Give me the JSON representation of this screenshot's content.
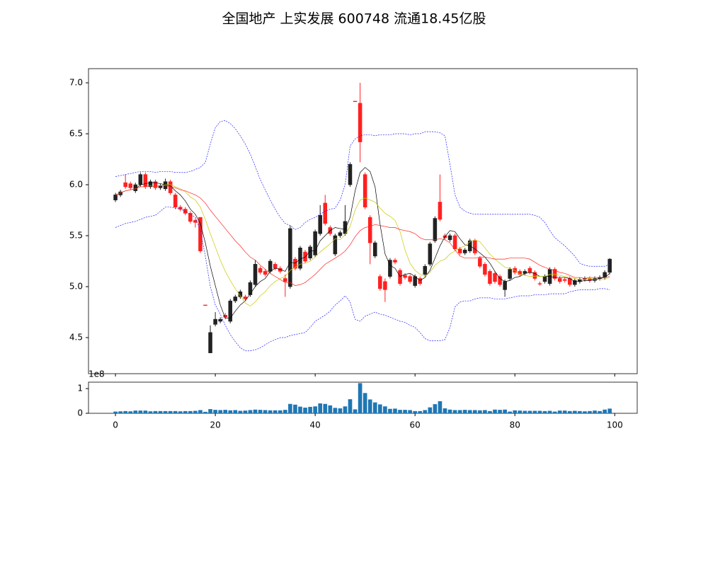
{
  "chart_data": {
    "type": "candlestick",
    "title": "全国地产 上实发展 600748 流通18.45亿股",
    "x": [
      0,
      1,
      2,
      3,
      4,
      5,
      6,
      7,
      8,
      9,
      10,
      11,
      12,
      13,
      14,
      15,
      16,
      17,
      18,
      19,
      20,
      21,
      22,
      23,
      24,
      25,
      26,
      27,
      28,
      29,
      30,
      31,
      32,
      33,
      34,
      35,
      36,
      37,
      38,
      39,
      40,
      41,
      42,
      43,
      44,
      45,
      46,
      47,
      48,
      49,
      50,
      51,
      52,
      53,
      54,
      55,
      56,
      57,
      58,
      59,
      60,
      61,
      62,
      63,
      64,
      65,
      66,
      67,
      68,
      69,
      70,
      71,
      72,
      73,
      74,
      75,
      76,
      77,
      78,
      79,
      80,
      81,
      82,
      83,
      84,
      85,
      86,
      87,
      88,
      89,
      90,
      91,
      92,
      93,
      94,
      95,
      96,
      97,
      98,
      99
    ],
    "open": [
      5.85,
      5.9,
      6.02,
      6.01,
      5.94,
      6.0,
      6.1,
      5.98,
      6.03,
      5.97,
      5.96,
      6.03,
      5.9,
      5.78,
      5.76,
      5.72,
      5.65,
      5.68,
      4.82,
      4.35,
      4.63,
      4.66,
      4.72,
      4.66,
      4.86,
      4.9,
      4.9,
      4.92,
      5.02,
      5.18,
      5.15,
      5.15,
      5.22,
      5.18,
      5.08,
      5.0,
      5.27,
      5.18,
      5.34,
      5.28,
      5.31,
      5.52,
      5.82,
      5.58,
      5.32,
      5.5,
      5.52,
      6.0,
      6.82,
      6.8,
      6.1,
      5.68,
      5.3,
      5.1,
      5.05,
      5.1,
      5.26,
      5.16,
      5.11,
      5.1,
      5.01,
      5.08,
      5.12,
      5.22,
      5.45,
      5.83,
      5.5,
      5.46,
      5.5,
      5.37,
      5.33,
      5.35,
      5.45,
      5.28,
      5.22,
      5.15,
      5.13,
      5.1,
      4.97,
      5.08,
      5.18,
      5.15,
      5.13,
      5.18,
      5.14,
      5.03,
      5.05,
      5.03,
      5.17,
      5.08,
      5.07,
      5.08,
      5.02,
      5.05,
      5.07,
      5.08,
      5.06,
      5.08,
      5.09,
      5.14
    ],
    "high": [
      5.92,
      5.95,
      6.1,
      6.03,
      6.02,
      6.12,
      6.12,
      6.05,
      6.05,
      6.01,
      6.06,
      6.05,
      5.92,
      5.8,
      5.78,
      5.74,
      5.67,
      5.68,
      4.82,
      4.62,
      4.75,
      4.7,
      4.74,
      4.88,
      4.92,
      4.97,
      4.92,
      5.06,
      5.26,
      5.2,
      5.17,
      5.27,
      5.24,
      5.2,
      5.12,
      5.6,
      5.29,
      5.4,
      5.36,
      5.41,
      5.56,
      5.8,
      5.9,
      5.6,
      5.52,
      5.55,
      5.8,
      6.22,
      6.82,
      7.0,
      6.12,
      5.7,
      5.45,
      5.12,
      5.08,
      5.28,
      5.28,
      5.18,
      5.13,
      5.12,
      5.12,
      5.1,
      5.22,
      5.44,
      5.69,
      6.1,
      5.52,
      5.52,
      5.52,
      5.39,
      5.38,
      5.47,
      5.47,
      5.3,
      5.24,
      5.17,
      5.15,
      5.12,
      5.07,
      5.19,
      5.2,
      5.17,
      5.17,
      5.2,
      5.16,
      5.05,
      5.12,
      5.19,
      5.19,
      5.1,
      5.09,
      5.1,
      5.08,
      5.09,
      5.1,
      5.1,
      5.1,
      5.11,
      5.16,
      5.28
    ],
    "low": [
      5.83,
      5.88,
      5.96,
      5.95,
      5.92,
      5.98,
      5.96,
      5.96,
      5.95,
      5.95,
      5.94,
      5.9,
      5.76,
      5.74,
      5.7,
      5.62,
      5.58,
      5.33,
      4.82,
      4.35,
      4.61,
      4.64,
      4.68,
      4.64,
      4.84,
      4.88,
      4.86,
      4.9,
      5.0,
      5.12,
      5.1,
      5.13,
      5.16,
      5.13,
      4.9,
      4.98,
      5.16,
      5.16,
      5.23,
      5.26,
      5.29,
      5.5,
      5.6,
      5.5,
      5.3,
      5.48,
      5.5,
      5.98,
      6.82,
      6.22,
      5.76,
      5.22,
      5.28,
      4.96,
      4.85,
      5.08,
      5.22,
      5.01,
      5.07,
      5.03,
      4.99,
      5.01,
      5.1,
      5.2,
      5.43,
      5.64,
      5.46,
      5.44,
      5.35,
      5.31,
      5.31,
      5.33,
      5.31,
      5.18,
      5.1,
      5.01,
      5.03,
      5.0,
      4.9,
      5.06,
      5.12,
      5.1,
      5.11,
      5.12,
      5.06,
      5.01,
      5.03,
      5.01,
      5.06,
      5.03,
      5.04,
      5.0,
      5.0,
      5.03,
      5.05,
      5.04,
      5.04,
      5.06,
      5.07,
      5.12
    ],
    "close": [
      5.9,
      5.93,
      5.98,
      5.97,
      6.0,
      6.1,
      5.98,
      6.03,
      5.97,
      5.99,
      6.03,
      5.92,
      5.78,
      5.76,
      5.72,
      5.64,
      5.63,
      5.35,
      4.82,
      4.55,
      4.68,
      4.68,
      4.7,
      4.86,
      4.9,
      4.95,
      4.88,
      5.04,
      5.22,
      5.14,
      5.12,
      5.25,
      5.18,
      5.15,
      5.05,
      5.57,
      5.18,
      5.38,
      5.25,
      5.39,
      5.54,
      5.7,
      5.62,
      5.52,
      5.5,
      5.53,
      5.64,
      6.2,
      6.82,
      6.42,
      5.78,
      5.43,
      5.43,
      4.98,
      4.97,
      5.26,
      5.24,
      5.03,
      5.09,
      5.05,
      5.1,
      5.03,
      5.2,
      5.42,
      5.67,
      5.66,
      5.48,
      5.5,
      5.37,
      5.33,
      5.36,
      5.45,
      5.33,
      5.2,
      5.12,
      5.03,
      5.05,
      5.02,
      5.05,
      5.17,
      5.14,
      5.12,
      5.15,
      5.14,
      5.08,
      5.03,
      5.1,
      5.17,
      5.08,
      5.05,
      5.06,
      5.02,
      5.06,
      5.07,
      5.08,
      5.06,
      5.08,
      5.09,
      5.14,
      5.27
    ],
    "up_color": "#222222",
    "down_color": "#ff2020",
    "lines": [
      {
        "color": "#000000",
        "dashed": false,
        "values": [
          5.9,
          5.92,
          5.94,
          5.95,
          5.96,
          6.0,
          6.01,
          6.02,
          6.02,
          6.01,
          6.0,
          5.99,
          5.94,
          5.9,
          5.84,
          5.76,
          5.71,
          5.62,
          5.43,
          5.2,
          5.01,
          4.82,
          4.69,
          4.69,
          4.76,
          4.82,
          4.86,
          4.93,
          5.0,
          5.05,
          5.08,
          5.15,
          5.18,
          5.17,
          5.15,
          5.24,
          5.23,
          5.27,
          5.29,
          5.35,
          5.35,
          5.45,
          5.5,
          5.55,
          5.58,
          5.57,
          5.56,
          5.68,
          5.94,
          6.12,
          6.17,
          6.13,
          5.98,
          5.61,
          5.32,
          5.21,
          5.18,
          5.1,
          5.12,
          5.13,
          5.1,
          5.06,
          5.09,
          5.16,
          5.28,
          5.4,
          5.49,
          5.55,
          5.54,
          5.47,
          5.41,
          5.4,
          5.37,
          5.33,
          5.29,
          5.23,
          5.15,
          5.08,
          5.05,
          5.06,
          5.09,
          5.1,
          5.13,
          5.14,
          5.13,
          5.1,
          5.1,
          5.1,
          5.09,
          5.09,
          5.09,
          5.08,
          5.05,
          5.05,
          5.06,
          5.06,
          5.07,
          5.08,
          5.09,
          5.13
        ]
      },
      {
        "color": "#c8c800",
        "dashed": false,
        "values": [
          5.9,
          5.92,
          5.94,
          5.95,
          5.96,
          5.98,
          5.98,
          5.99,
          5.98,
          5.99,
          6.0,
          6.0,
          5.98,
          5.96,
          5.93,
          5.88,
          5.85,
          5.78,
          5.66,
          5.52,
          5.39,
          5.26,
          5.15,
          5.06,
          4.98,
          4.91,
          4.84,
          4.81,
          4.85,
          4.91,
          4.95,
          5.01,
          5.05,
          5.08,
          5.1,
          5.16,
          5.19,
          5.22,
          5.23,
          5.25,
          5.29,
          5.34,
          5.38,
          5.42,
          5.47,
          5.46,
          5.51,
          5.59,
          5.75,
          5.85,
          5.87,
          5.85,
          5.83,
          5.77,
          5.72,
          5.69,
          5.65,
          5.54,
          5.36,
          5.23,
          5.16,
          5.12,
          5.1,
          5.14,
          5.21,
          5.25,
          5.27,
          5.32,
          5.35,
          5.38,
          5.4,
          5.44,
          5.46,
          5.44,
          5.38,
          5.32,
          5.27,
          5.23,
          5.19,
          5.18,
          5.16,
          5.12,
          5.11,
          5.1,
          5.1,
          5.1,
          5.1,
          5.12,
          5.12,
          5.11,
          5.1,
          5.09,
          5.08,
          5.07,
          5.07,
          5.08,
          5.07,
          5.07,
          5.07,
          5.09
        ]
      },
      {
        "color": "#ff2020",
        "dashed": false,
        "values": [
          5.9,
          5.92,
          5.94,
          5.95,
          5.96,
          5.98,
          5.98,
          5.99,
          5.98,
          5.99,
          5.99,
          5.98,
          5.97,
          5.95,
          5.94,
          5.92,
          5.9,
          5.87,
          5.82,
          5.75,
          5.69,
          5.63,
          5.57,
          5.51,
          5.45,
          5.4,
          5.34,
          5.29,
          5.26,
          5.21,
          5.17,
          5.13,
          5.1,
          5.07,
          5.04,
          5.04,
          5.01,
          5.02,
          5.04,
          5.08,
          5.12,
          5.17,
          5.22,
          5.25,
          5.28,
          5.31,
          5.35,
          5.41,
          5.49,
          5.55,
          5.58,
          5.59,
          5.61,
          5.6,
          5.59,
          5.58,
          5.58,
          5.56,
          5.55,
          5.54,
          5.52,
          5.48,
          5.46,
          5.46,
          5.46,
          5.47,
          5.46,
          5.43,
          5.36,
          5.3,
          5.28,
          5.28,
          5.28,
          5.29,
          5.29,
          5.28,
          5.27,
          5.27,
          5.27,
          5.28,
          5.28,
          5.28,
          5.28,
          5.27,
          5.24,
          5.21,
          5.19,
          5.17,
          5.16,
          5.14,
          5.13,
          5.11,
          5.09,
          5.09,
          5.08,
          5.09,
          5.09,
          5.09,
          5.09,
          5.1
        ]
      },
      {
        "color": "#2020ff",
        "dashed": true,
        "values": [
          6.08,
          6.09,
          6.1,
          6.11,
          6.12,
          6.13,
          6.13,
          6.13,
          6.12,
          6.13,
          6.13,
          6.13,
          6.12,
          6.12,
          6.12,
          6.13,
          6.15,
          6.17,
          6.22,
          6.4,
          6.56,
          6.62,
          6.63,
          6.6,
          6.55,
          6.48,
          6.4,
          6.3,
          6.18,
          6.05,
          5.95,
          5.85,
          5.76,
          5.68,
          5.62,
          5.6,
          5.56,
          5.58,
          5.63,
          5.66,
          5.68,
          5.71,
          5.74,
          5.76,
          5.77,
          5.85,
          6.0,
          6.38,
          6.45,
          6.48,
          6.49,
          6.49,
          6.48,
          6.49,
          6.49,
          6.49,
          6.5,
          6.5,
          6.5,
          6.49,
          6.5,
          6.5,
          6.52,
          6.52,
          6.52,
          6.51,
          6.48,
          6.2,
          5.9,
          5.78,
          5.74,
          5.72,
          5.71,
          5.71,
          5.71,
          5.71,
          5.71,
          5.71,
          5.71,
          5.71,
          5.71,
          5.71,
          5.71,
          5.71,
          5.7,
          5.68,
          5.63,
          5.55,
          5.48,
          5.44,
          5.4,
          5.35,
          5.3,
          5.23,
          5.21,
          5.2,
          5.2,
          5.2,
          5.2,
          5.22
        ]
      },
      {
        "color": "#2020ff",
        "dashed": true,
        "values": [
          5.58,
          5.6,
          5.62,
          5.63,
          5.64,
          5.66,
          5.68,
          5.69,
          5.7,
          5.74,
          5.78,
          5.78,
          5.77,
          5.76,
          5.74,
          5.71,
          5.68,
          5.55,
          5.3,
          5.0,
          4.82,
          4.73,
          4.62,
          4.53,
          4.46,
          4.4,
          4.37,
          4.37,
          4.38,
          4.4,
          4.43,
          4.46,
          4.48,
          4.5,
          4.5,
          4.52,
          4.53,
          4.54,
          4.55,
          4.6,
          4.66,
          4.69,
          4.72,
          4.76,
          4.82,
          4.86,
          4.91,
          4.85,
          4.68,
          4.66,
          4.71,
          4.73,
          4.75,
          4.73,
          4.72,
          4.7,
          4.68,
          4.66,
          4.65,
          4.62,
          4.6,
          4.55,
          4.49,
          4.47,
          4.47,
          4.47,
          4.48,
          4.6,
          4.8,
          4.85,
          4.86,
          4.86,
          4.88,
          4.89,
          4.89,
          4.89,
          4.88,
          4.88,
          4.88,
          4.89,
          4.9,
          4.91,
          4.91,
          4.91,
          4.92,
          4.92,
          4.92,
          4.93,
          4.93,
          4.93,
          4.93,
          4.95,
          4.96,
          4.97,
          4.97,
          4.97,
          4.97,
          4.98,
          4.98,
          4.97
        ]
      }
    ],
    "xlim": [
      -5.4,
      104.5
    ],
    "xticks": [
      0,
      20,
      40,
      60,
      80,
      100
    ],
    "ylim": [
      4.146,
      7.139
    ],
    "yticks": [
      4.5,
      {
        "value": 5,
        "label": "5.0"
      },
      5.5,
      {
        "value": 6,
        "label": "6.0"
      },
      6.5,
      {
        "value": 7,
        "label": "7.0"
      }
    ],
    "volume": {
      "type": "bar",
      "color": "#1f77b4",
      "offset_label": "1e8",
      "values": [
        7000000,
        8000000,
        9000000,
        8000000,
        11000000,
        11000000,
        11000000,
        8000000,
        9000000,
        9000000,
        9000000,
        9000000,
        9000000,
        8000000,
        9000000,
        9000000,
        10000000,
        13000000,
        6000000,
        17000000,
        14000000,
        13000000,
        14000000,
        12000000,
        13000000,
        10000000,
        11000000,
        13000000,
        15000000,
        14000000,
        13000000,
        12000000,
        12000000,
        12000000,
        14000000,
        38000000,
        35000000,
        27000000,
        23000000,
        26000000,
        28000000,
        40000000,
        38000000,
        32000000,
        22000000,
        20000000,
        28000000,
        57000000,
        16000000,
        122000000,
        82000000,
        56000000,
        44000000,
        36000000,
        28000000,
        18000000,
        19000000,
        14000000,
        14000000,
        13000000,
        9000000,
        9000000,
        13000000,
        24000000,
        37000000,
        49000000,
        20000000,
        15000000,
        13000000,
        13000000,
        14000000,
        13000000,
        13000000,
        12000000,
        13000000,
        9000000,
        15000000,
        14000000,
        15000000,
        7000000,
        12000000,
        11000000,
        10000000,
        10000000,
        10000000,
        10000000,
        9000000,
        10000000,
        7000000,
        11000000,
        11000000,
        9000000,
        10000000,
        9000000,
        8000000,
        9000000,
        11000000,
        9000000,
        15000000,
        19000000
      ],
      "ylim": [
        0,
        126000000
      ],
      "yticks": [
        0,
        {
          "value": 100000000,
          "label": "1"
        }
      ]
    }
  }
}
